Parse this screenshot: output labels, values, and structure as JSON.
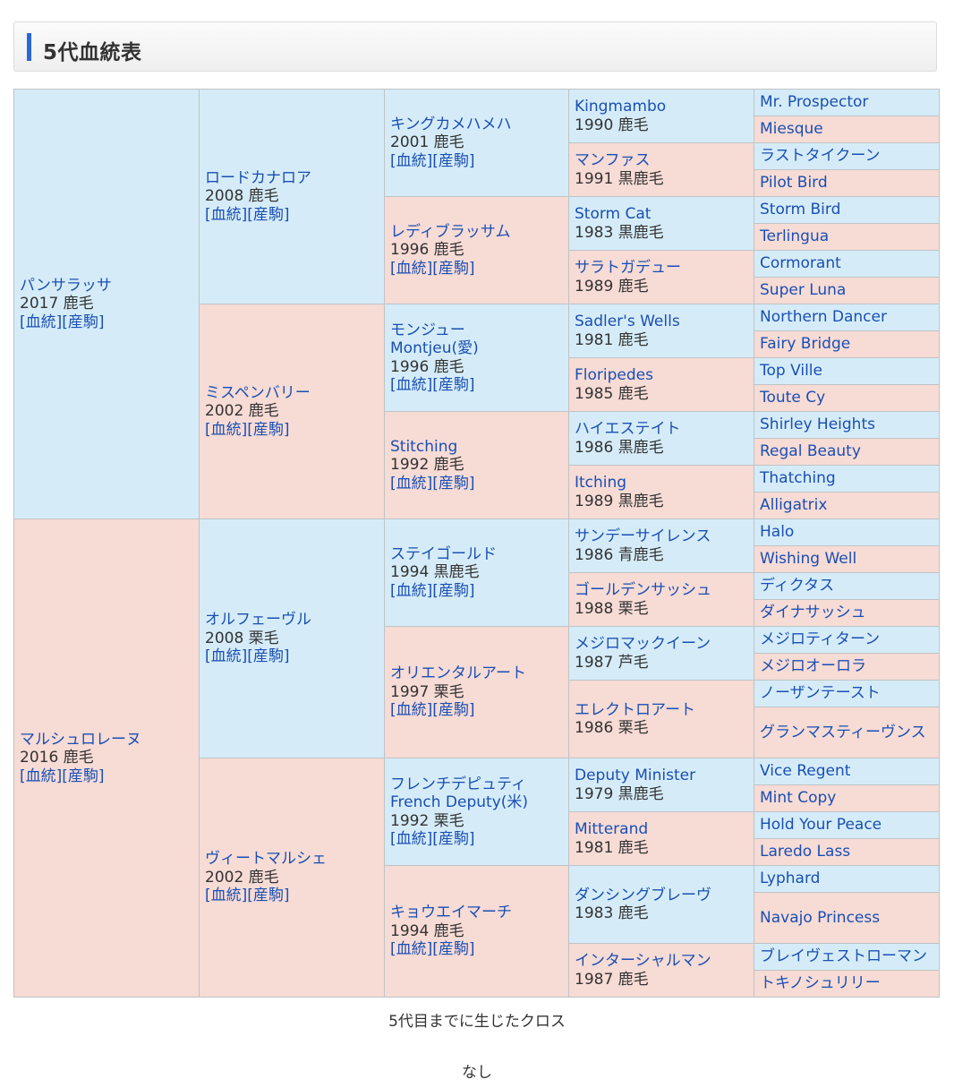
{
  "section_title": "5代血統表",
  "links": {
    "lineage": "[血統]",
    "offspring": "[産駒]"
  },
  "gen1": {
    "sire": {
      "name": "パンサラッサ",
      "detail": "2017 鹿毛"
    },
    "dam": {
      "name": "マルシュロレーヌ",
      "detail": "2016 鹿毛"
    }
  },
  "gen2": [
    {
      "name": "ロードカナロア",
      "detail": "2008 鹿毛"
    },
    {
      "name": "ミスペンバリー",
      "detail": "2002 鹿毛"
    },
    {
      "name": "オルフェーヴル",
      "detail": "2008 栗毛"
    },
    {
      "name": "ヴィートマルシェ",
      "detail": "2002 鹿毛"
    }
  ],
  "gen3": [
    {
      "name": "キングカメハメハ",
      "alt": "",
      "detail": "2001 鹿毛"
    },
    {
      "name": "レディブラッサム",
      "alt": "",
      "detail": "1996 鹿毛"
    },
    {
      "name": "モンジュー",
      "alt": "Montjeu(愛)",
      "detail": "1996 鹿毛"
    },
    {
      "name": "Stitching",
      "alt": "",
      "detail": "1992 鹿毛"
    },
    {
      "name": "ステイゴールド",
      "alt": "",
      "detail": "1994 黒鹿毛"
    },
    {
      "name": "オリエンタルアート",
      "alt": "",
      "detail": "1997 栗毛"
    },
    {
      "name": "フレンチデピュティ",
      "alt": "French Deputy(米)",
      "detail": "1992 栗毛"
    },
    {
      "name": "キョウエイマーチ",
      "alt": "",
      "detail": "1994 鹿毛"
    }
  ],
  "gen4": [
    {
      "name": "Kingmambo",
      "detail": "1990 鹿毛"
    },
    {
      "name": "マンファス",
      "detail": "1991 黒鹿毛"
    },
    {
      "name": "Storm Cat",
      "detail": "1983 黒鹿毛"
    },
    {
      "name": "サラトガデュー",
      "detail": "1989 鹿毛"
    },
    {
      "name": "Sadler's Wells",
      "detail": "1981 鹿毛"
    },
    {
      "name": "Floripedes",
      "detail": "1985 鹿毛"
    },
    {
      "name": "ハイエステイト",
      "detail": "1986 黒鹿毛"
    },
    {
      "name": "Itching",
      "detail": "1989 黒鹿毛"
    },
    {
      "name": "サンデーサイレンス",
      "detail": "1986 青鹿毛"
    },
    {
      "name": "ゴールデンサッシュ",
      "detail": "1988 栗毛"
    },
    {
      "name": "メジロマックイーン",
      "detail": "1987 芦毛"
    },
    {
      "name": "エレクトロアート",
      "detail": "1986 栗毛"
    },
    {
      "name": "Deputy Minister",
      "detail": "1979 黒鹿毛"
    },
    {
      "name": "Mitterand",
      "detail": "1981 鹿毛"
    },
    {
      "name": "ダンシングブレーヴ",
      "detail": "1983 鹿毛"
    },
    {
      "name": "インターシャルマン",
      "detail": "1987 鹿毛"
    }
  ],
  "gen5": [
    "Mr. Prospector",
    "Miesque",
    "ラストタイクーン",
    "Pilot Bird",
    "Storm Bird",
    "Terlingua",
    "Cormorant",
    "Super Luna",
    "Northern Dancer",
    "Fairy Bridge",
    "Top Ville",
    "Toute Cy",
    "Shirley Heights",
    "Regal Beauty",
    "Thatching",
    "Alligatrix",
    "Halo",
    "Wishing Well",
    "ディクタス",
    "ダイナサッシュ",
    "メジロティターン",
    "メジロオーロラ",
    "ノーザンテースト",
    "グランマスティーヴンス",
    "Vice Regent",
    "Mint Copy",
    "Hold Your Peace",
    "Laredo Lass",
    "Lyphard",
    "Navajo Princess",
    "ブレイヴェストローマン",
    "トキノシュリリー"
  ],
  "cross": {
    "label": "5代目までに生じたクロス",
    "value": "なし"
  },
  "colors": {
    "male_bg": "#d5ecf8",
    "female_bg": "#f7dbd5",
    "link": "#1a4fb3",
    "accent_bar": "#2c67d6"
  }
}
